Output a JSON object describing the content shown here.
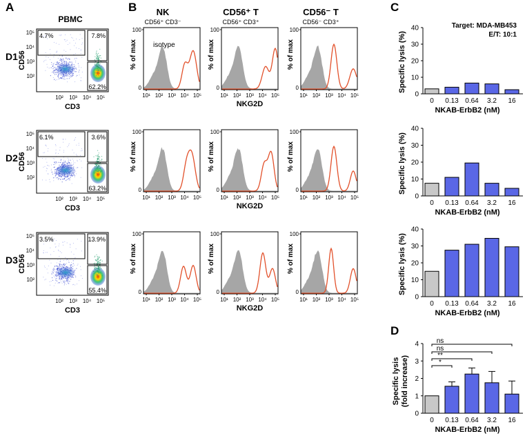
{
  "panels": {
    "A": {
      "letter": "A",
      "title": "PBMC",
      "ylabel": "CD56",
      "xlabel": "CD3",
      "ticks": [
        "10²",
        "10³",
        "10⁴",
        "10⁵"
      ],
      "rows": [
        {
          "donor": "D1",
          "q_ul": "4.7%",
          "q_ur": "7.8%",
          "q_lr": "62.2%"
        },
        {
          "donor": "D2",
          "q_ul": "6.1%",
          "q_ur": "3.6%",
          "q_lr": "63.2%"
        },
        {
          "donor": "D3",
          "q_ul": "3.5%",
          "q_ur": "13.9%",
          "q_lr": "55.4%"
        }
      ]
    },
    "B": {
      "letter": "B",
      "columns": [
        {
          "title": "NK",
          "sub": "CD56⁺ CD3⁻"
        },
        {
          "title": "CD56⁺ T",
          "sub": "CD56⁺ CD3⁺"
        },
        {
          "title": "CD56⁻ T",
          "sub": "CD56⁻ CD3⁺"
        }
      ],
      "ylabel": "% of max",
      "xlabel": "NKG2D",
      "isotype_label": "isotype",
      "y_tick_top": "100",
      "y_tick_zero": "0",
      "x_ticks": [
        "10¹",
        "10²",
        "10³",
        "10⁴",
        "10⁵"
      ]
    },
    "C": {
      "letter": "C",
      "annotation_target": "Target: MDA-MB453",
      "annotation_ratio": "E/T: 10:1"
    },
    "D": {
      "letter": "D"
    }
  },
  "colors": {
    "isotype_fill": "#a6a6a6",
    "nkg2d_line": "#e2502a",
    "bar_control": "#c8c8c8",
    "bar_treated": "#5a67e6"
  },
  "chart_data": [
    {
      "panel": "C",
      "row": 1,
      "type": "bar",
      "categories": [
        "0",
        "0.13",
        "0.64",
        "3.2",
        "16"
      ],
      "values": [
        3,
        4,
        6.5,
        6,
        2.5
      ],
      "ylabel": "Specific lysis  (%)",
      "xlabel": "NKAB-ErbB2  (nM)",
      "ylim": [
        0,
        40
      ],
      "yticks": [
        "0",
        "10",
        "20",
        "30",
        "40"
      ]
    },
    {
      "panel": "C",
      "row": 2,
      "type": "bar",
      "categories": [
        "0",
        "0.13",
        "0.64",
        "3.2",
        "16"
      ],
      "values": [
        7.5,
        11,
        19.5,
        7.5,
        4.5
      ],
      "ylabel": "Specific lysis  (%)",
      "xlabel": "NKAB-ErbB2  (nM)",
      "ylim": [
        0,
        40
      ],
      "yticks": [
        "0",
        "10",
        "20",
        "30",
        "40"
      ]
    },
    {
      "panel": "C",
      "row": 3,
      "type": "bar",
      "categories": [
        "0",
        "0.13",
        "0.64",
        "3.2",
        "16"
      ],
      "values": [
        15,
        27.5,
        31,
        34.5,
        29.5
      ],
      "ylabel": "Specific lysis  (%)",
      "xlabel": "NKAB-ErbB2  (nM)",
      "ylim": [
        0,
        40
      ],
      "yticks": [
        "0",
        "10",
        "20",
        "30",
        "40"
      ]
    },
    {
      "panel": "D",
      "type": "bar",
      "categories": [
        "0",
        "0.13",
        "0.64",
        "3.2",
        "16"
      ],
      "values": [
        1.0,
        1.55,
        2.25,
        1.75,
        1.1
      ],
      "errors": [
        0,
        0.25,
        0.35,
        0.65,
        0.75
      ],
      "ylabel": "Specific lysis",
      "ylabel2": "(fold increase)",
      "xlabel": "NKAB-ErbB2  (nM)",
      "ylim": [
        0,
        4
      ],
      "yticks": [
        "0",
        "1",
        "2",
        "3",
        "4"
      ],
      "significance": [
        {
          "compare": [
            "0",
            "0.13"
          ],
          "label": "*"
        },
        {
          "compare": [
            "0",
            "0.64"
          ],
          "label": "**"
        },
        {
          "compare": [
            "0",
            "3.2"
          ],
          "label": "ns"
        },
        {
          "compare": [
            "0",
            "16"
          ],
          "label": "ns"
        }
      ]
    }
  ]
}
